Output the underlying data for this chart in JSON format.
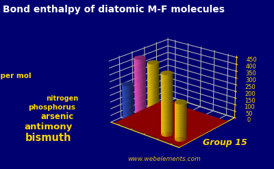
{
  "title": "Bond enthalpy of diatomic M-F molecules",
  "ylabel": "kJ per mol",
  "xlabel": "Group 15",
  "background_color": "#000070",
  "elements": [
    "nitrogen",
    "phosphorus",
    "arsenic",
    "antimony",
    "bismuth"
  ],
  "values": [
    272,
    490,
    484,
    440,
    267
  ],
  "bar_colors": [
    "#3355CC",
    "#FF55CC",
    "#FFD700",
    "#FFD700",
    "#FFD700"
  ],
  "yticks": [
    0,
    50,
    100,
    150,
    200,
    250,
    300,
    350,
    400,
    450
  ],
  "ylim": [
    0,
    450
  ],
  "title_color": "#FFFFFF",
  "label_color": "#FFD700",
  "grid_color": "#FFD700",
  "floor_color": "#8B0000",
  "watermark": "www.webelements.com",
  "title_fontsize": 10,
  "label_fontsize": 8,
  "elem_fontsizes": [
    7,
    7.5,
    8.5,
    9.5,
    10.5
  ]
}
